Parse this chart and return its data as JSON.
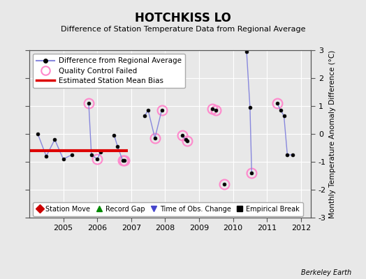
{
  "title": "HOTCHKISS LO",
  "subtitle": "Difference of Station Temperature Data from Regional Average",
  "ylabel": "Monthly Temperature Anomaly Difference (°C)",
  "credit": "Berkeley Earth",
  "xlim": [
    2004.0,
    2012.3
  ],
  "ylim": [
    -3,
    3
  ],
  "yticks": [
    -3,
    -2,
    -1,
    0,
    1,
    2,
    3
  ],
  "bg_color": "#e8e8e8",
  "plot_bg_color": "#e8e8e8",
  "grid_color": "#ffffff",
  "line_color": "#8888dd",
  "line_segments": [
    {
      "x": [
        2004.25,
        2004.5,
        2004.75,
        2005.0,
        2005.25
      ],
      "y": [
        0.0,
        -0.8,
        -0.2,
        -0.9,
        -0.75
      ]
    },
    {
      "x": [
        2005.75,
        2005.83,
        2006.0,
        2006.1
      ],
      "y": [
        1.1,
        -0.75,
        -0.9,
        -0.65
      ]
    },
    {
      "x": [
        2006.5,
        2006.6,
        2006.75,
        2006.8
      ],
      "y": [
        -0.05,
        -0.45,
        -0.95,
        -0.95
      ]
    },
    {
      "x": [
        2007.4,
        2007.5,
        2007.7,
        2007.9
      ],
      "y": [
        0.65,
        0.85,
        -0.15,
        0.85
      ]
    },
    {
      "x": [
        2008.5,
        2008.6,
        2008.65
      ],
      "y": [
        -0.05,
        -0.2,
        -0.25
      ]
    },
    {
      "x": [
        2009.4,
        2009.5
      ],
      "y": [
        0.9,
        0.85
      ]
    },
    {
      "x": [
        2009.75
      ],
      "y": [
        -1.8
      ]
    },
    {
      "x": [
        2010.4,
        2010.5,
        2010.55
      ],
      "y": [
        2.95,
        0.95,
        -1.4
      ]
    },
    {
      "x": [
        2011.3,
        2011.4,
        2011.5,
        2011.6,
        2011.75
      ],
      "y": [
        1.1,
        0.85,
        0.65,
        -0.75,
        -0.75
      ]
    }
  ],
  "qc_failed_x": [
    2005.75,
    2006.0,
    2006.75,
    2006.8,
    2007.7,
    2007.9,
    2008.5,
    2008.65,
    2009.4,
    2009.5,
    2009.75,
    2010.55,
    2011.3
  ],
  "qc_failed_y": [
    1.1,
    -0.9,
    -0.95,
    -0.95,
    -0.15,
    0.85,
    -0.05,
    -0.25,
    0.9,
    0.85,
    -1.8,
    -1.4,
    1.1
  ],
  "bias_line": {
    "x": [
      2004.0,
      2006.9
    ],
    "y": [
      -0.6,
      -0.6
    ]
  },
  "bias_color": "#dd0000",
  "legend2_colors": [
    "#cc0000",
    "#008800",
    "#4444cc",
    "#000000"
  ],
  "legend2_markers": [
    "D",
    "^",
    "v",
    "s"
  ],
  "legend2_labels": [
    "Station Move",
    "Record Gap",
    "Time of Obs. Change",
    "Empirical Break"
  ]
}
